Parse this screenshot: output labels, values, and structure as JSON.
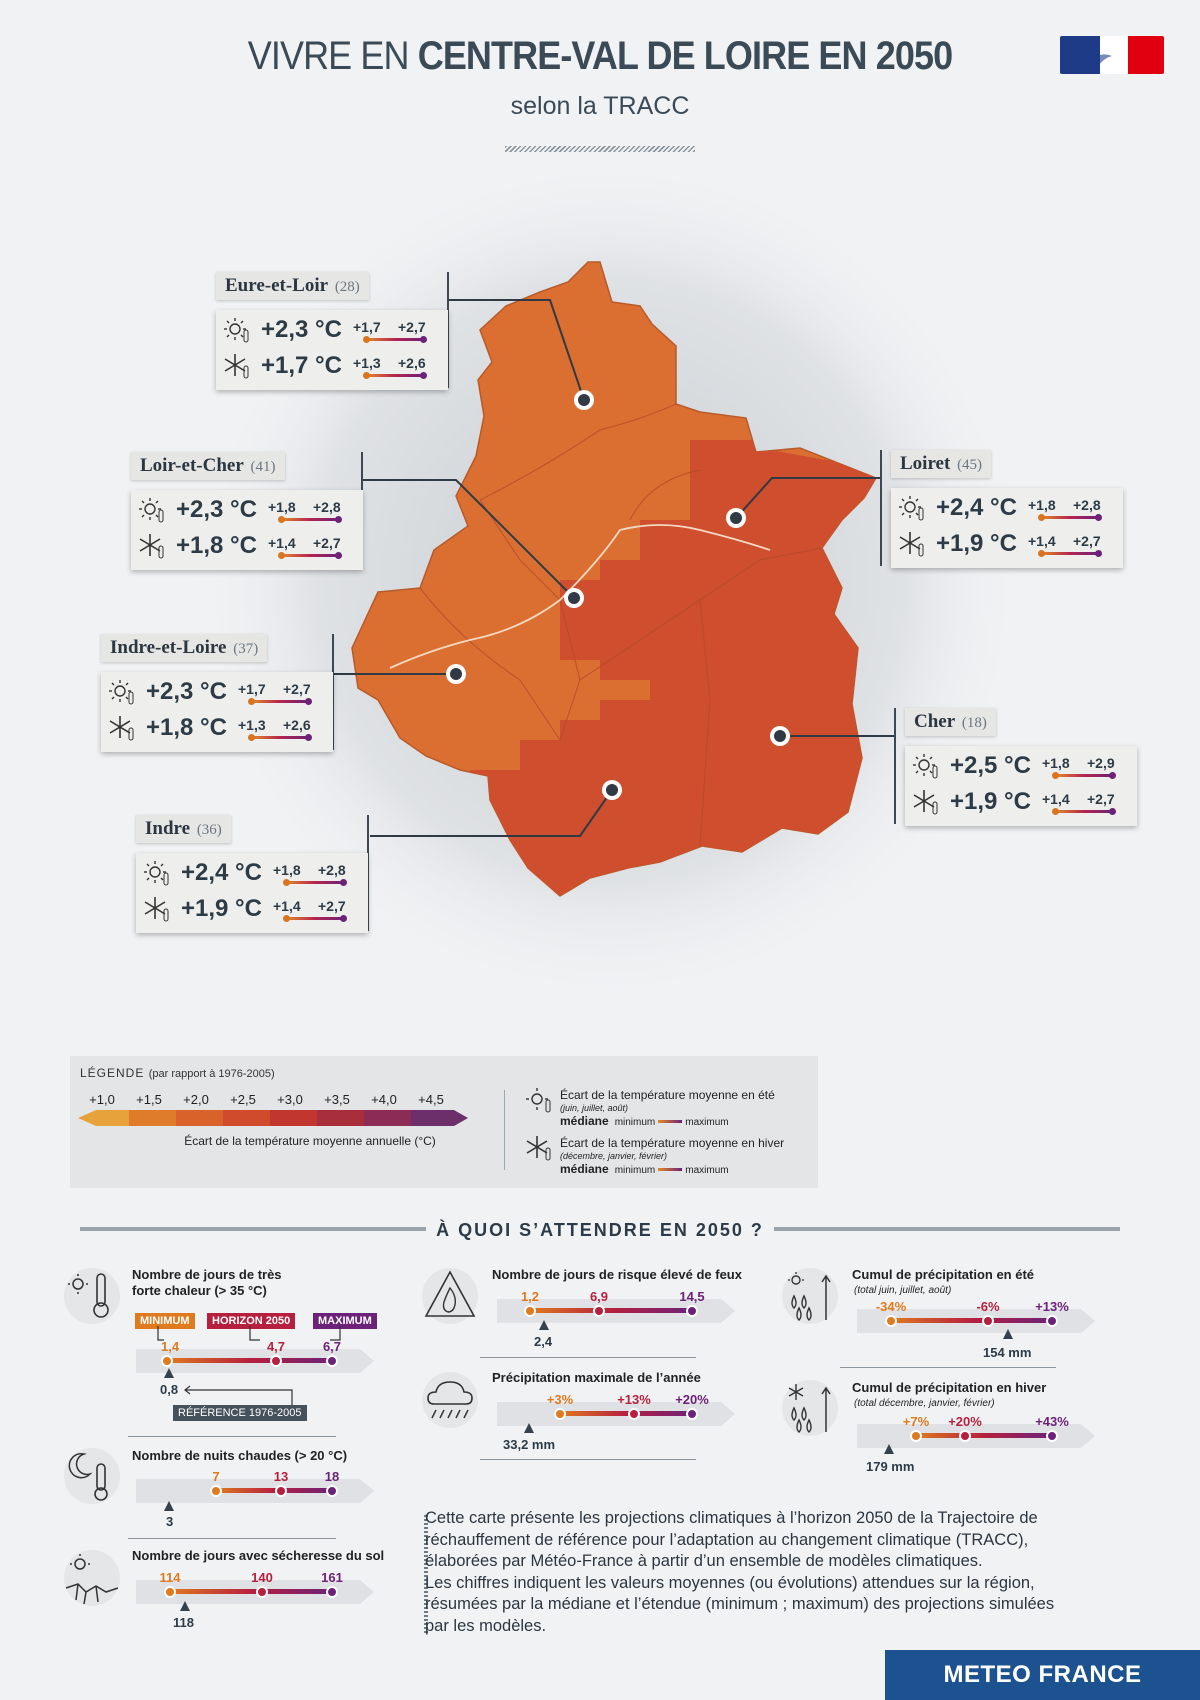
{
  "header": {
    "title_light": "VIVRE EN ",
    "title_bold": "CENTRE-VAL DE LOIRE EN 2050",
    "subtitle": "selon la TRACC"
  },
  "colors": {
    "map_light": "#db6f31",
    "map_dark": "#cf4e2d",
    "accent_min": "#e07a1f",
    "accent_med": "#b61f3d",
    "accent_max": "#6c2279",
    "brand": "#1d5290"
  },
  "departments": [
    {
      "name": "Eure-et-Loir",
      "code": "(28)",
      "summer": {
        "median": "+2,3 °C",
        "min": "+1,7",
        "max": "+2,7"
      },
      "winter": {
        "median": "+1,7 °C",
        "min": "+1,3",
        "max": "+2,6"
      }
    },
    {
      "name": "Loir-et-Cher",
      "code": "(41)",
      "summer": {
        "median": "+2,3 °C",
        "min": "+1,8",
        "max": "+2,8"
      },
      "winter": {
        "median": "+1,8 °C",
        "min": "+1,4",
        "max": "+2,7"
      }
    },
    {
      "name": "Loiret",
      "code": "(45)",
      "summer": {
        "median": "+2,4 °C",
        "min": "+1,8",
        "max": "+2,8"
      },
      "winter": {
        "median": "+1,9 °C",
        "min": "+1,4",
        "max": "+2,7"
      }
    },
    {
      "name": "Indre-et-Loire",
      "code": "(37)",
      "summer": {
        "median": "+2,3 °C",
        "min": "+1,7",
        "max": "+2,7"
      },
      "winter": {
        "median": "+1,8 °C",
        "min": "+1,3",
        "max": "+2,6"
      }
    },
    {
      "name": "Cher",
      "code": "(18)",
      "summer": {
        "median": "+2,5 °C",
        "min": "+1,8",
        "max": "+2,9"
      },
      "winter": {
        "median": "+1,9 °C",
        "min": "+1,4",
        "max": "+2,7"
      }
    },
    {
      "name": "Indre",
      "code": "(36)",
      "summer": {
        "median": "+2,4 °C",
        "min": "+1,8",
        "max": "+2,8"
      },
      "winter": {
        "median": "+1,9 °C",
        "min": "+1,4",
        "max": "+2,7"
      }
    }
  ],
  "legend": {
    "title": "LÉGENDE",
    "title_note": "(par rapport à 1976-2005)",
    "ticks": [
      "+1,0",
      "+1,5",
      "+2,0",
      "+2,5",
      "+3,0",
      "+3,5",
      "+4,0",
      "+4,5"
    ],
    "scale_colors": [
      "#e8a23c",
      "#df7c2c",
      "#d8622a",
      "#cf4b2c",
      "#c1372f",
      "#a82e3c",
      "#8c2c55",
      "#6c2f6c"
    ],
    "axis_label": "Écart de la température moyenne annuelle (°C)",
    "summer": {
      "title": "Écart de la température moyenne en été",
      "sub": "(juin, juillet, août)",
      "median": "médiane",
      "min": "minimum",
      "max": "maximum"
    },
    "winter": {
      "title": "Écart de la température moyenne en hiver",
      "sub": "(décembre, janvier, février)",
      "median": "médiane",
      "min": "minimum",
      "max": "maximum"
    }
  },
  "section_title": "À QUOI S’ATTENDRE EN 2050 ?",
  "indicators": {
    "heat": {
      "label1": "Nombre de jours de très",
      "label2": "forte chaleur (> 35 °C)",
      "tag_min": "MINIMUM",
      "tag_med": "HORIZON 2050",
      "tag_max": "MAXIMUM",
      "min": "1,4",
      "med": "4,7",
      "max": "6,7",
      "ref": "0,8",
      "ref_tag": "RÉFÉRENCE 1976-2005"
    },
    "nights": {
      "label": "Nombre de nuits chaudes (> 20 °C)",
      "min": "7",
      "med": "13",
      "max": "18",
      "ref": "3"
    },
    "drought": {
      "label": "Nombre de jours avec sécheresse du sol",
      "min": "114",
      "med": "140",
      "max": "161",
      "ref": "118"
    },
    "fire": {
      "label": "Nombre de jours de risque élevé de feux",
      "min": "1,2",
      "med": "6,9",
      "max": "14,5",
      "ref": "2,4"
    },
    "maxprecip": {
      "label": "Précipitation maximale de l’année",
      "min": "+3%",
      "med": "+13%",
      "max": "+20%",
      "ref": "33,2 mm"
    },
    "summerprecip": {
      "label": "Cumul de précipitation en été",
      "sub": "(total juin, juillet, août)",
      "min": "-34%",
      "med": "-6%",
      "max": "+13%",
      "ref": "154 mm"
    },
    "winterprecip": {
      "label": "Cumul de précipitation en hiver",
      "sub": "(total décembre, janvier, février)",
      "min": "+7%",
      "med": "+20%",
      "max": "+43%",
      "ref": "179 mm"
    }
  },
  "description": [
    "Cette carte présente les projections climatiques à l’horizon 2050 de la Trajectoire de",
    "réchauffement de référence pour l’adaptation au changement climatique (TRACC),",
    "élaborées par Météo-France à partir d’un ensemble de modèles climatiques.",
    "Les chiffres indiquent les valeurs moyennes (ou évolutions) attendues sur la région,",
    "résumées par la médiane et l’étendue (minimum ; maximum) des projections simulées",
    "par les modèles."
  ],
  "footer_brand": "METEO FRANCE"
}
